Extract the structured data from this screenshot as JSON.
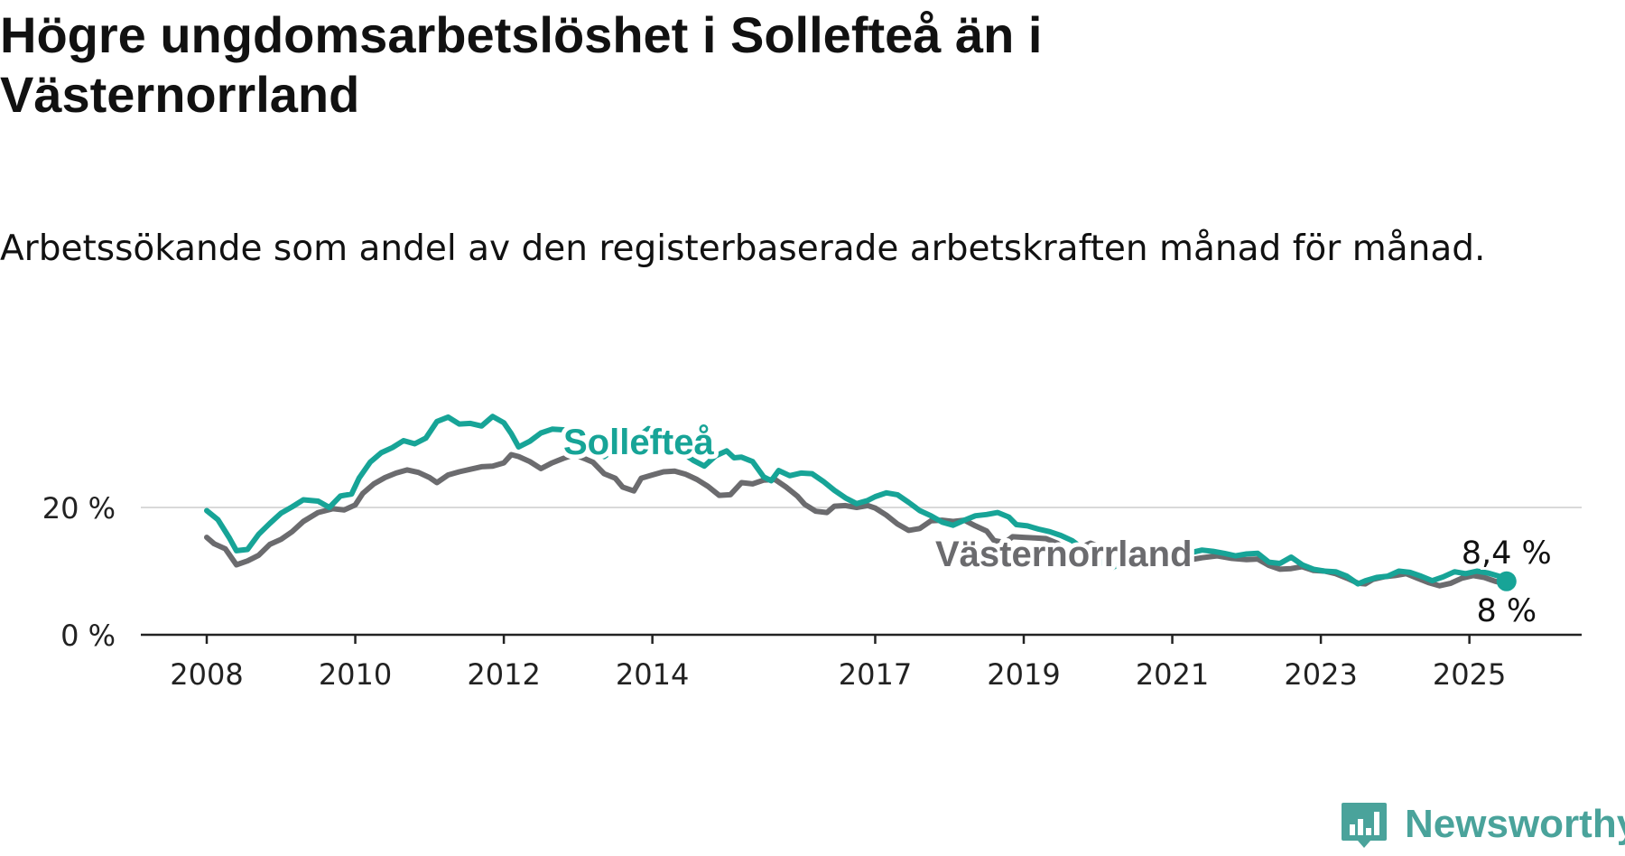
{
  "title": "Högre ungdomsarbetslöshet i Sollefteå än i Västernorrland",
  "subtitle": "Arbetssökande som andel av den registerbaserade arbetskraften månad för månad.",
  "brand": {
    "name": "Newsworthy",
    "color": "#4aa39b"
  },
  "chart_data": {
    "type": "line",
    "title": "Högre ungdomsarbetslöshet i Sollefteå än i Västernorrland",
    "subtitle": "Arbetssökande som andel av den registerbaserade arbetskraften månad för månad.",
    "x_range": [
      2008.0,
      2025.6
    ],
    "y_range": [
      0,
      35
    ],
    "y_ticks": [
      {
        "value": 0,
        "label": "0 %"
      },
      {
        "value": 20,
        "label": "20 %"
      }
    ],
    "x_ticks": [
      {
        "value": 2008,
        "label": "2008"
      },
      {
        "value": 2010,
        "label": "2010"
      },
      {
        "value": 2012,
        "label": "2012"
      },
      {
        "value": 2014,
        "label": "2014"
      },
      {
        "value": 2017,
        "label": "2017"
      },
      {
        "value": 2019,
        "label": "2019"
      },
      {
        "value": 2021,
        "label": "2021"
      },
      {
        "value": 2023,
        "label": "2023"
      },
      {
        "value": 2025,
        "label": "2025"
      }
    ],
    "grid": "horizontal",
    "series": [
      {
        "name": "Västernorrland",
        "color": "#6b6b6e",
        "end_label": "8 %",
        "points": [
          [
            2008.0,
            15.3
          ],
          [
            2008.1,
            14.3
          ],
          [
            2008.25,
            13.5
          ],
          [
            2008.4,
            11.0
          ],
          [
            2008.55,
            11.6
          ],
          [
            2008.7,
            12.5
          ],
          [
            2008.85,
            14.2
          ],
          [
            2009.0,
            15.0
          ],
          [
            2009.15,
            16.2
          ],
          [
            2009.3,
            17.8
          ],
          [
            2009.5,
            19.2
          ],
          [
            2009.7,
            19.8
          ],
          [
            2009.85,
            19.6
          ],
          [
            2010.0,
            20.4
          ],
          [
            2010.1,
            22.2
          ],
          [
            2010.25,
            23.7
          ],
          [
            2010.4,
            24.7
          ],
          [
            2010.55,
            25.4
          ],
          [
            2010.7,
            25.9
          ],
          [
            2010.85,
            25.5
          ],
          [
            2011.0,
            24.7
          ],
          [
            2011.1,
            23.9
          ],
          [
            2011.25,
            25.1
          ],
          [
            2011.4,
            25.6
          ],
          [
            2011.55,
            26.0
          ],
          [
            2011.7,
            26.4
          ],
          [
            2011.85,
            26.5
          ],
          [
            2012.0,
            27.0
          ],
          [
            2012.1,
            28.3
          ],
          [
            2012.2,
            28.0
          ],
          [
            2012.35,
            27.2
          ],
          [
            2012.5,
            26.1
          ],
          [
            2012.65,
            27.0
          ],
          [
            2012.8,
            27.7
          ],
          [
            2012.95,
            28.3
          ],
          [
            2013.1,
            27.6
          ],
          [
            2013.2,
            27.1
          ],
          [
            2013.35,
            25.3
          ],
          [
            2013.5,
            24.6
          ],
          [
            2013.6,
            23.2
          ],
          [
            2013.75,
            22.6
          ],
          [
            2013.85,
            24.6
          ],
          [
            2014.0,
            25.1
          ],
          [
            2014.15,
            25.6
          ],
          [
            2014.3,
            25.7
          ],
          [
            2014.45,
            25.2
          ],
          [
            2014.6,
            24.4
          ],
          [
            2014.75,
            23.3
          ],
          [
            2014.9,
            21.9
          ],
          [
            2015.05,
            22.0
          ],
          [
            2015.2,
            23.9
          ],
          [
            2015.35,
            23.7
          ],
          [
            2015.5,
            24.3
          ],
          [
            2015.65,
            24.4
          ],
          [
            2015.8,
            23.2
          ],
          [
            2015.95,
            21.8
          ],
          [
            2016.05,
            20.5
          ],
          [
            2016.2,
            19.4
          ],
          [
            2016.35,
            19.2
          ],
          [
            2016.45,
            20.2
          ],
          [
            2016.6,
            20.3
          ],
          [
            2016.75,
            20.0
          ],
          [
            2016.9,
            20.3
          ],
          [
            2017.0,
            19.9
          ],
          [
            2017.15,
            18.8
          ],
          [
            2017.3,
            17.4
          ],
          [
            2017.45,
            16.4
          ],
          [
            2017.6,
            16.7
          ],
          [
            2017.75,
            17.9
          ],
          [
            2017.9,
            18.0
          ],
          [
            2018.05,
            17.8
          ],
          [
            2018.2,
            18.0
          ],
          [
            2018.35,
            17.1
          ],
          [
            2018.5,
            16.3
          ],
          [
            2018.6,
            14.8
          ],
          [
            2018.75,
            14.5
          ],
          [
            2018.85,
            15.4
          ],
          [
            2019.0,
            15.3
          ],
          [
            2019.15,
            15.2
          ],
          [
            2019.3,
            15.1
          ],
          [
            2019.45,
            14.4
          ],
          [
            2019.55,
            13.6
          ],
          [
            2019.65,
            13.0
          ],
          [
            2019.75,
            13.6
          ],
          [
            2019.9,
            14.4
          ],
          [
            2020.0,
            13.9
          ],
          [
            2020.2,
            13.3
          ],
          [
            2020.4,
            13.0
          ],
          [
            2020.6,
            12.7
          ],
          [
            2020.8,
            12.2
          ],
          [
            2021.0,
            11.9
          ],
          [
            2021.2,
            11.7
          ],
          [
            2021.4,
            12.1
          ],
          [
            2021.6,
            12.4
          ],
          [
            2021.8,
            12.0
          ],
          [
            2022.0,
            11.8
          ],
          [
            2022.15,
            11.9
          ],
          [
            2022.3,
            10.9
          ],
          [
            2022.45,
            10.3
          ],
          [
            2022.6,
            10.4
          ],
          [
            2022.75,
            10.7
          ],
          [
            2022.9,
            10.1
          ],
          [
            2023.05,
            10.0
          ],
          [
            2023.2,
            9.6
          ],
          [
            2023.35,
            8.9
          ],
          [
            2023.5,
            8.1
          ],
          [
            2023.6,
            8.0
          ],
          [
            2023.7,
            8.7
          ],
          [
            2023.85,
            9.1
          ],
          [
            2024.0,
            9.3
          ],
          [
            2024.15,
            9.6
          ],
          [
            2024.3,
            8.9
          ],
          [
            2024.45,
            8.2
          ],
          [
            2024.6,
            7.7
          ],
          [
            2024.75,
            8.1
          ],
          [
            2024.9,
            8.9
          ],
          [
            2025.05,
            9.3
          ],
          [
            2025.2,
            9.0
          ],
          [
            2025.35,
            8.4
          ],
          [
            2025.5,
            8.0
          ]
        ]
      },
      {
        "name": "Sollefteå",
        "color": "#17a497",
        "end_label": "8,4 %",
        "points": [
          [
            2008.0,
            19.5
          ],
          [
            2008.15,
            18.1
          ],
          [
            2008.3,
            15.3
          ],
          [
            2008.4,
            13.2
          ],
          [
            2008.55,
            13.4
          ],
          [
            2008.7,
            15.8
          ],
          [
            2008.85,
            17.5
          ],
          [
            2009.0,
            19.1
          ],
          [
            2009.15,
            20.1
          ],
          [
            2009.3,
            21.2
          ],
          [
            2009.5,
            21.0
          ],
          [
            2009.65,
            20.0
          ],
          [
            2009.8,
            21.8
          ],
          [
            2009.95,
            22.1
          ],
          [
            2010.05,
            24.6
          ],
          [
            2010.2,
            27.1
          ],
          [
            2010.35,
            28.6
          ],
          [
            2010.5,
            29.4
          ],
          [
            2010.65,
            30.5
          ],
          [
            2010.8,
            30.0
          ],
          [
            2010.95,
            30.9
          ],
          [
            2011.1,
            33.5
          ],
          [
            2011.25,
            34.2
          ],
          [
            2011.4,
            33.1
          ],
          [
            2011.55,
            33.2
          ],
          [
            2011.7,
            32.8
          ],
          [
            2011.85,
            34.3
          ],
          [
            2012.0,
            33.3
          ],
          [
            2012.1,
            31.6
          ],
          [
            2012.2,
            29.5
          ],
          [
            2012.35,
            30.4
          ],
          [
            2012.5,
            31.7
          ],
          [
            2012.65,
            32.3
          ],
          [
            2012.8,
            32.2
          ],
          [
            2012.95,
            31.6
          ],
          [
            2013.05,
            30.8
          ],
          [
            2013.2,
            29.5
          ],
          [
            2013.35,
            28.0
          ],
          [
            2013.5,
            29.2
          ],
          [
            2013.65,
            30.5
          ],
          [
            2013.8,
            31.0
          ],
          [
            2013.95,
            32.4
          ],
          [
            2014.1,
            31.6
          ],
          [
            2014.25,
            30.3
          ],
          [
            2014.4,
            28.6
          ],
          [
            2014.55,
            27.4
          ],
          [
            2014.7,
            26.5
          ],
          [
            2014.85,
            28.1
          ],
          [
            2015.0,
            28.9
          ],
          [
            2015.1,
            27.8
          ],
          [
            2015.2,
            27.9
          ],
          [
            2015.35,
            27.2
          ],
          [
            2015.5,
            24.8
          ],
          [
            2015.6,
            24.2
          ],
          [
            2015.7,
            25.8
          ],
          [
            2015.85,
            25.0
          ],
          [
            2016.0,
            25.4
          ],
          [
            2016.15,
            25.3
          ],
          [
            2016.3,
            24.1
          ],
          [
            2016.45,
            22.7
          ],
          [
            2016.6,
            21.5
          ],
          [
            2016.75,
            20.6
          ],
          [
            2016.9,
            21.1
          ],
          [
            2017.0,
            21.7
          ],
          [
            2017.15,
            22.3
          ],
          [
            2017.3,
            22.0
          ],
          [
            2017.45,
            20.8
          ],
          [
            2017.6,
            19.5
          ],
          [
            2017.75,
            18.7
          ],
          [
            2017.9,
            17.7
          ],
          [
            2018.05,
            17.2
          ],
          [
            2018.2,
            18.0
          ],
          [
            2018.35,
            18.7
          ],
          [
            2018.5,
            18.9
          ],
          [
            2018.65,
            19.2
          ],
          [
            2018.8,
            18.5
          ],
          [
            2018.9,
            17.3
          ],
          [
            2019.05,
            17.1
          ],
          [
            2019.2,
            16.6
          ],
          [
            2019.35,
            16.2
          ],
          [
            2019.5,
            15.6
          ],
          [
            2019.65,
            14.8
          ],
          [
            2019.8,
            13.5
          ],
          [
            2019.95,
            12.6
          ],
          [
            2020.05,
            11.3
          ],
          [
            2020.2,
            10.6
          ],
          [
            2020.35,
            11.5
          ],
          [
            2020.5,
            11.9
          ],
          [
            2020.65,
            12.3
          ],
          [
            2020.8,
            12.9
          ],
          [
            2020.95,
            13.0
          ],
          [
            2021.1,
            12.6
          ],
          [
            2021.25,
            12.9
          ],
          [
            2021.4,
            13.3
          ],
          [
            2021.55,
            13.1
          ],
          [
            2021.7,
            12.8
          ],
          [
            2021.85,
            12.4
          ],
          [
            2022.0,
            12.7
          ],
          [
            2022.15,
            12.8
          ],
          [
            2022.3,
            11.4
          ],
          [
            2022.45,
            11.2
          ],
          [
            2022.6,
            12.2
          ],
          [
            2022.75,
            11.0
          ],
          [
            2022.9,
            10.3
          ],
          [
            2023.05,
            10.0
          ],
          [
            2023.2,
            9.9
          ],
          [
            2023.35,
            9.2
          ],
          [
            2023.5,
            8.0
          ],
          [
            2023.6,
            8.5
          ],
          [
            2023.75,
            9.0
          ],
          [
            2023.9,
            9.2
          ],
          [
            2024.05,
            10.0
          ],
          [
            2024.2,
            9.8
          ],
          [
            2024.35,
            9.2
          ],
          [
            2024.5,
            8.5
          ],
          [
            2024.65,
            9.1
          ],
          [
            2024.8,
            9.9
          ],
          [
            2024.95,
            9.6
          ],
          [
            2025.1,
            10.0
          ],
          [
            2025.25,
            9.7
          ],
          [
            2025.4,
            9.2
          ],
          [
            2025.5,
            8.4
          ]
        ]
      }
    ]
  }
}
